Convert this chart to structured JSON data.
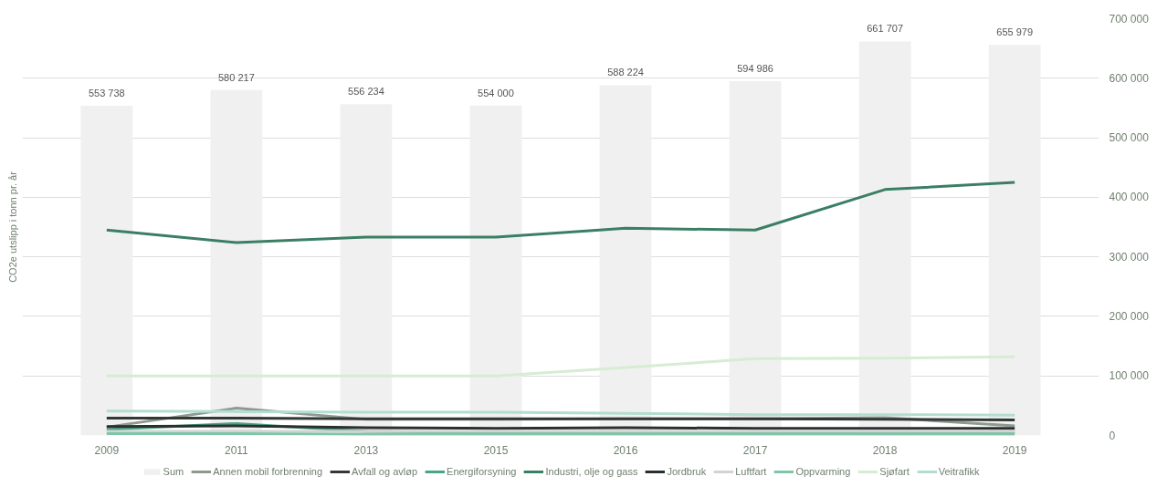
{
  "chart_data": {
    "type": "line",
    "ylabel": "CO2e utslipp i tonn pr. år",
    "categories": [
      "2009",
      "2011",
      "2013",
      "2015",
      "2016",
      "2017",
      "2018",
      "2019"
    ],
    "ylim": [
      0,
      700000
    ],
    "yticks": [
      {
        "value": 0,
        "label": "0"
      },
      {
        "value": 100000,
        "label": "100 000"
      },
      {
        "value": 200000,
        "label": "200 000"
      },
      {
        "value": 300000,
        "label": "300 000"
      },
      {
        "value": 400000,
        "label": "400 000"
      },
      {
        "value": 500000,
        "label": "500 000"
      },
      {
        "value": 600000,
        "label": "600 000"
      },
      {
        "value": 700000,
        "label": "700 000"
      }
    ],
    "grid": "y",
    "legend": "bottom",
    "series": [
      {
        "name": "Sum",
        "type": "bar",
        "color": "#f0f0f0",
        "values": [
          553738,
          580217,
          556234,
          554000,
          588224,
          594986,
          661707,
          655979
        ],
        "value_labels": [
          "553 738",
          "580 217",
          "556 234",
          "554 000",
          "588 224",
          "594 986",
          "661 707",
          "655 979"
        ]
      },
      {
        "name": "Annen mobil forbrenning",
        "color": "#8e9a90",
        "values": [
          14000,
          46000,
          27000,
          27000,
          28000,
          28000,
          30000,
          16000
        ]
      },
      {
        "name": "Avfall og avløp",
        "color": "#333735",
        "values": [
          29000,
          29000,
          28000,
          28000,
          28000,
          28000,
          27000,
          26000
        ]
      },
      {
        "name": "Energiforsyning",
        "color": "#4aa585",
        "values": [
          10000,
          20000,
          7000,
          5000,
          5000,
          5000,
          5000,
          5000
        ]
      },
      {
        "name": "Industri, olje og gass",
        "color": "#3a7f64",
        "values": [
          345000,
          324000,
          333000,
          333000,
          348000,
          345000,
          413000,
          425000
        ]
      },
      {
        "name": "Jordbruk",
        "color": "#2b302e",
        "values": [
          15000,
          16000,
          13000,
          12000,
          13000,
          12000,
          12000,
          12000
        ]
      },
      {
        "name": "Luftfart",
        "color": "#d3d3d3",
        "values": [
          7000,
          7000,
          7000,
          7000,
          7000,
          7000,
          7000,
          7000
        ]
      },
      {
        "name": "Oppvarming",
        "color": "#7fc6a9",
        "values": [
          3000,
          3000,
          2000,
          2000,
          2000,
          2000,
          2000,
          2000
        ]
      },
      {
        "name": "Sjøfart",
        "color": "#d6edd3",
        "values": [
          100000,
          100000,
          100000,
          100000,
          114000,
          129000,
          130000,
          132000
        ]
      },
      {
        "name": "Veitrafikk",
        "color": "#b3ddd0",
        "values": [
          41000,
          40000,
          39000,
          39000,
          37000,
          35000,
          35000,
          34000
        ]
      }
    ]
  }
}
